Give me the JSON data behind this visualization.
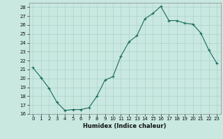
{
  "x": [
    0,
    1,
    2,
    3,
    4,
    5,
    6,
    7,
    8,
    9,
    10,
    11,
    12,
    13,
    14,
    15,
    16,
    17,
    18,
    19,
    20,
    21,
    22,
    23
  ],
  "y": [
    21.2,
    20.1,
    18.9,
    17.3,
    16.4,
    16.5,
    16.5,
    16.7,
    18.0,
    19.8,
    20.2,
    22.5,
    24.1,
    24.8,
    26.7,
    27.3,
    28.1,
    26.5,
    26.5,
    26.2,
    26.1,
    25.1,
    23.2,
    21.7
  ],
  "line_color": "#1a6b5a",
  "marker": "+",
  "marker_size": 3,
  "marker_lw": 0.8,
  "line_width": 0.8,
  "bg_color": "#c8e8e0",
  "grid_color": "#a8ccc8",
  "xlabel": "Humidex (Indice chaleur)",
  "xlim": [
    -0.5,
    23.5
  ],
  "ylim": [
    16,
    28.5
  ],
  "xticks": [
    0,
    1,
    2,
    3,
    4,
    5,
    6,
    7,
    8,
    9,
    10,
    11,
    12,
    13,
    14,
    15,
    16,
    17,
    18,
    19,
    20,
    21,
    22,
    23
  ],
  "yticks": [
    16,
    17,
    18,
    19,
    20,
    21,
    22,
    23,
    24,
    25,
    26,
    27,
    28
  ],
  "tick_fontsize": 5,
  "xlabel_fontsize": 6
}
